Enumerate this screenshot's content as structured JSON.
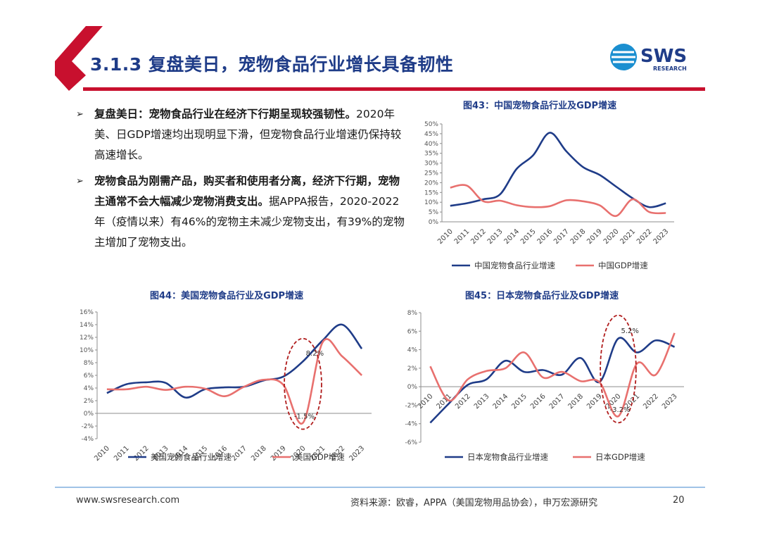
{
  "header": {
    "title": "3.1.3 复盘美日，宠物食品行业增长具备韧性",
    "logo_text": "SWS",
    "logo_sub": "RESEARCH"
  },
  "bullets": [
    {
      "strong": "复盘美日：宠物食品行业在经济下行期呈现较强韧性。",
      "text": "2020年美、日GDP增速均出现明显下滑，但宠物食品行业增速仍保持较高速增长。"
    },
    {
      "strong": "宠物食品为刚需产品，购买者和使用者分离，经济下行期，宠物主通常不会大幅减少宠物消费支出。",
      "text": "据APPA报告，2020-2022年（疫情以来）有46%的宠物主未减少宠物支出，有39%的宠物主增加了宠物支出。"
    }
  ],
  "colors": {
    "industry": "#1f3c88",
    "gdp": "#e8706e",
    "accent": "#c8102e",
    "ellipse": "#b01c1c"
  },
  "chart_data": [
    {
      "id": "china",
      "type": "line",
      "title": "图43：中国宠物食品行业及GDP增速",
      "x": [
        "2010",
        "2011",
        "2012",
        "2013",
        "2014",
        "2015",
        "2016",
        "2017",
        "2018",
        "2019",
        "2020",
        "2021",
        "2022",
        "2023"
      ],
      "yticks": [
        "50%",
        "45%",
        "40%",
        "35%",
        "30%",
        "25%",
        "20%",
        "15%",
        "10%",
        "5%",
        "0%"
      ],
      "ylim": [
        0,
        50
      ],
      "series": [
        {
          "name": "中国宠物食品行业增速",
          "values": [
            8.2,
            9.5,
            11.5,
            14,
            27,
            34,
            45.5,
            36,
            28,
            24,
            18,
            12,
            7.5,
            9.5
          ]
        },
        {
          "name": "中国GDP增速",
          "values": [
            17.5,
            18.5,
            10.5,
            10.8,
            8.5,
            7.5,
            8,
            11,
            10.5,
            8.5,
            3,
            11.5,
            5,
            4.5
          ]
        }
      ],
      "annotations": []
    },
    {
      "id": "us",
      "type": "line",
      "title": "图44：美国宠物食品行业及GDP增速",
      "x": [
        "2010",
        "2011",
        "2012",
        "2013",
        "2014",
        "2015",
        "2016",
        "2017",
        "2018",
        "2019",
        "2020",
        "2021",
        "2022",
        "2023"
      ],
      "yticks": [
        "16%",
        "14%",
        "12%",
        "10%",
        "8%",
        "6%",
        "4%",
        "2%",
        "0%",
        "-2%",
        "-4%"
      ],
      "ylim": [
        -4,
        16
      ],
      "series": [
        {
          "name": "美国宠物食品行业增速",
          "values": [
            3.2,
            4.6,
            4.9,
            4.8,
            2.5,
            3.8,
            4.1,
            4.2,
            5.2,
            5.8,
            8.2,
            11.5,
            14,
            10.2
          ]
        },
        {
          "name": "美国GDP增速",
          "values": [
            3.8,
            3.8,
            4.2,
            3.7,
            4.2,
            3.9,
            2.7,
            4.2,
            5.3,
            4.5,
            -1.5,
            11.2,
            9,
            6
          ]
        }
      ],
      "annotations": [
        "8.2%",
        "-1.5%"
      ]
    },
    {
      "id": "japan",
      "type": "line",
      "title": "图45：日本宠物食品行业及GDP增速",
      "x": [
        "2010",
        "2011",
        "2012",
        "2013",
        "2014",
        "2015",
        "2016",
        "2017",
        "2018",
        "2019",
        "2020",
        "2021",
        "2022",
        "2023"
      ],
      "yticks": [
        "8%",
        "6%",
        "4%",
        "2%",
        "0%",
        "-2%",
        "-4%",
        "-6%"
      ],
      "ylim": [
        -6,
        8
      ],
      "series": [
        {
          "name": "日本宠物食品行业增速",
          "values": [
            -3.9,
            -1.8,
            0.2,
            0.8,
            2.8,
            1.6,
            1.8,
            1.3,
            3.1,
            0.5,
            5.2,
            3.7,
            5,
            4.3
          ]
        },
        {
          "name": "日本GDP增速",
          "values": [
            2.2,
            -1.5,
            0.8,
            1.7,
            2,
            3.7,
            1,
            1.6,
            0.6,
            0.5,
            -3.2,
            2.5,
            1.3,
            5.8
          ]
        }
      ],
      "annotations": [
        "5.2%",
        "-3.2%"
      ]
    }
  ],
  "footer": {
    "site": "www.swsresearch.com",
    "source": "资料来源：欧睿，APPA（美国宠物用品协会），申万宏源研究",
    "page": "20"
  }
}
